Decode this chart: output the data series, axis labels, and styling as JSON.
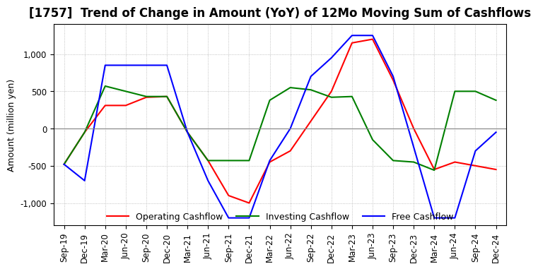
{
  "title": "[1757]  Trend of Change in Amount (YoY) of 12Mo Moving Sum of Cashflows",
  "ylabel": "Amount (million yen)",
  "xlabels": [
    "Sep-19",
    "Dec-19",
    "Mar-20",
    "Jun-20",
    "Sep-20",
    "Dec-20",
    "Mar-21",
    "Jun-21",
    "Sep-21",
    "Dec-21",
    "Mar-22",
    "Jun-22",
    "Sep-22",
    "Dec-22",
    "Mar-23",
    "Jun-23",
    "Sep-23",
    "Dec-23",
    "Mar-24",
    "Jun-24",
    "Sep-24",
    "Dec-24"
  ],
  "operating": [
    -480,
    -50,
    310,
    310,
    420,
    430,
    -50,
    -430,
    -900,
    -1000,
    -450,
    -300,
    100,
    500,
    1150,
    1200,
    650,
    0,
    -550,
    -450,
    -500,
    -550
  ],
  "investing": [
    -480,
    -50,
    570,
    500,
    430,
    430,
    -50,
    -430,
    -430,
    -430,
    380,
    550,
    520,
    420,
    430,
    -150,
    -430,
    -450,
    -560,
    500,
    500,
    380
  ],
  "free": [
    -480,
    -700,
    850,
    850,
    850,
    850,
    -50,
    -700,
    -1200,
    -1200,
    -430,
    0,
    700,
    950,
    1250,
    1250,
    700,
    -250,
    -1200,
    -1200,
    -300,
    -50
  ],
  "ylim": [
    -1300,
    1400
  ],
  "yticks": [
    -1000,
    -500,
    0,
    500,
    1000
  ],
  "operating_color": "#ff0000",
  "investing_color": "#008000",
  "free_color": "#0000ff",
  "legend_labels": [
    "Operating Cashflow",
    "Investing Cashflow",
    "Free Cashflow"
  ],
  "background_color": "#ffffff",
  "grid_color": "#b0b0b0",
  "title_fontsize": 12,
  "axis_fontsize": 9,
  "tick_fontsize": 8.5,
  "linewidth": 1.5
}
